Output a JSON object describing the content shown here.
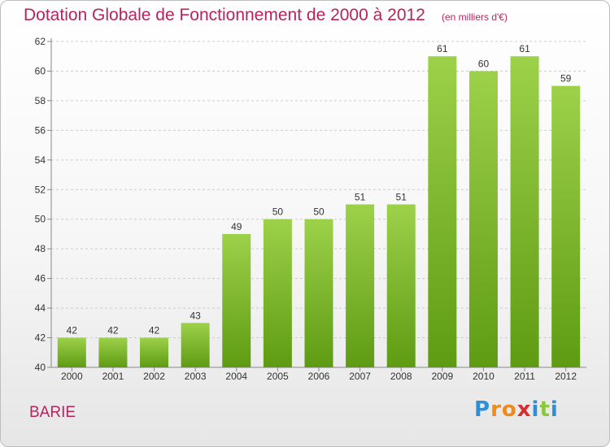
{
  "header": {
    "title": "Dotation Globale de Fonctionnement de 2000 à 2012",
    "unit": "(en milliers d'€)"
  },
  "footer": {
    "commune": "BARIE",
    "logo_letters": [
      "P",
      "r",
      "o",
      "x",
      "i",
      "t",
      "i"
    ],
    "logo_colors": [
      "#2f8fd6",
      "#f08a1c",
      "#f08a1c",
      "#d92c2c",
      "#2f8fd6",
      "#8cc63f",
      "#2f8fd6"
    ]
  },
  "colors": {
    "bar_top": "#9dd14a",
    "bar_bottom": "#5e9b13",
    "accent": "#b5245c"
  },
  "chart_data": {
    "type": "bar",
    "categories": [
      "2000",
      "2001",
      "2002",
      "2003",
      "2004",
      "2005",
      "2006",
      "2007",
      "2008",
      "2009",
      "2010",
      "2011",
      "2012"
    ],
    "values": [
      42,
      42,
      42,
      43,
      49,
      50,
      50,
      51,
      51,
      61,
      60,
      61,
      59
    ],
    "ylim": [
      40,
      62
    ],
    "yticks": [
      40,
      42,
      44,
      46,
      48,
      50,
      52,
      54,
      56,
      58,
      60,
      62
    ],
    "grid": true
  }
}
